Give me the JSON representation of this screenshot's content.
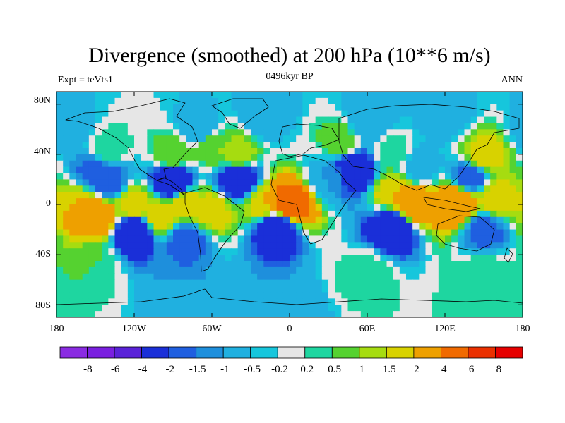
{
  "chart_data": {
    "type": "heatmap",
    "title": "Divergence (smoothed) at 200 hPa (10**6 m/s)",
    "subtitle_left": "Expt = teVts1",
    "subtitle_center": "0496kyr BP",
    "subtitle_right": "ANN",
    "x_range": [
      -180,
      180
    ],
    "y_range": [
      -90,
      90
    ],
    "x_ticks": [
      {
        "value": -180,
        "label": "180"
      },
      {
        "value": -120,
        "label": "120W"
      },
      {
        "value": -60,
        "label": "60W"
      },
      {
        "value": 0,
        "label": "0"
      },
      {
        "value": 60,
        "label": "60E"
      },
      {
        "value": 120,
        "label": "120E"
      },
      {
        "value": 180,
        "label": "180"
      }
    ],
    "y_ticks": [
      {
        "value": 80,
        "label": "80N"
      },
      {
        "value": 40,
        "label": "40N"
      },
      {
        "value": 0,
        "label": "0"
      },
      {
        "value": -40,
        "label": "40S"
      },
      {
        "value": -80,
        "label": "80S"
      }
    ],
    "colorbar": {
      "levels": [
        "-8",
        "-6",
        "-4",
        "-2",
        "-1.5",
        "-1",
        "-0.5",
        "-0.2",
        "0.2",
        "0.5",
        "1",
        "1.5",
        "2",
        "4",
        "6",
        "8"
      ],
      "colors": [
        "#8a2be2",
        "#7a1fe0",
        "#5a22d8",
        "#1a2fd8",
        "#1f5fe0",
        "#1e8fdc",
        "#20b0e0",
        "#16c6dc",
        "#e6e6e6",
        "#1ed6a0",
        "#55d230",
        "#a6dc10",
        "#d8d200",
        "#eea000",
        "#f06a00",
        "#ea3000",
        "#e60000"
      ]
    },
    "field_description_lon_lat_value": [
      [
        -160,
        0,
        2
      ],
      [
        -120,
        0,
        2
      ],
      [
        -80,
        0,
        2
      ],
      [
        -150,
        -10,
        4
      ],
      [
        -100,
        -10,
        2
      ],
      [
        -140,
        18,
        -2
      ],
      [
        -90,
        18,
        -4
      ],
      [
        -40,
        20,
        -4
      ],
      [
        -150,
        25,
        -2
      ],
      [
        -140,
        45,
        0.5
      ],
      [
        -90,
        40,
        1
      ],
      [
        -40,
        40,
        1.5
      ],
      [
        -60,
        45,
        1
      ],
      [
        -120,
        -22,
        -4
      ],
      [
        -80,
        -28,
        -2
      ],
      [
        -10,
        -18,
        -4
      ],
      [
        80,
        -18,
        -4
      ],
      [
        150,
        -20,
        -2
      ],
      [
        -150,
        -45,
        0.5
      ],
      [
        60,
        -55,
        0.5
      ],
      [
        150,
        -55,
        0.5
      ],
      [
        0,
        0,
        6
      ],
      [
        -60,
        -5,
        2
      ],
      [
        -20,
        0,
        2
      ],
      [
        95,
        0,
        4
      ],
      [
        130,
        0,
        4
      ],
      [
        160,
        5,
        2
      ],
      [
        80,
        10,
        2
      ],
      [
        140,
        22,
        -2
      ],
      [
        50,
        28,
        -4
      ],
      [
        30,
        20,
        -1
      ],
      [
        100,
        30,
        -1
      ],
      [
        150,
        38,
        2
      ],
      [
        80,
        40,
        0.5
      ],
      [
        40,
        50,
        1
      ],
      [
        -70,
        60,
        -1
      ],
      [
        60,
        65,
        -1
      ],
      [
        120,
        70,
        -1
      ],
      [
        -20,
        70,
        -1
      ],
      [
        -170,
        60,
        -1
      ],
      [
        0,
        -85,
        -1
      ],
      [
        -80,
        -85,
        -1
      ]
    ]
  }
}
